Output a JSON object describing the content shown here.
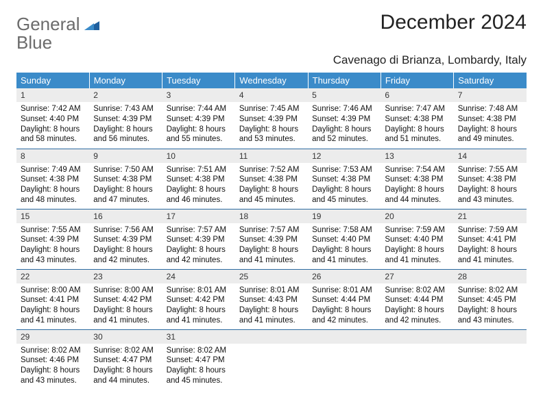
{
  "brand": {
    "word1": "General",
    "word2": "Blue",
    "mark_color": "#1f5f9e",
    "word1_color": "#6b6b6b",
    "word2_color": "#2a7fc4"
  },
  "title": "December 2024",
  "subtitle": "Cavenago di Brianza, Lombardy, Italy",
  "header_bg": "#3b8bc9",
  "row_divider_color": "#2b6aa0",
  "daynum_bg": "#ececec",
  "weekdays": [
    "Sunday",
    "Monday",
    "Tuesday",
    "Wednesday",
    "Thursday",
    "Friday",
    "Saturday"
  ],
  "weeks": [
    [
      {
        "num": "1",
        "sunrise": "Sunrise: 7:42 AM",
        "sunset": "Sunset: 4:40 PM",
        "daylight": "Daylight: 8 hours and 58 minutes."
      },
      {
        "num": "2",
        "sunrise": "Sunrise: 7:43 AM",
        "sunset": "Sunset: 4:39 PM",
        "daylight": "Daylight: 8 hours and 56 minutes."
      },
      {
        "num": "3",
        "sunrise": "Sunrise: 7:44 AM",
        "sunset": "Sunset: 4:39 PM",
        "daylight": "Daylight: 8 hours and 55 minutes."
      },
      {
        "num": "4",
        "sunrise": "Sunrise: 7:45 AM",
        "sunset": "Sunset: 4:39 PM",
        "daylight": "Daylight: 8 hours and 53 minutes."
      },
      {
        "num": "5",
        "sunrise": "Sunrise: 7:46 AM",
        "sunset": "Sunset: 4:39 PM",
        "daylight": "Daylight: 8 hours and 52 minutes."
      },
      {
        "num": "6",
        "sunrise": "Sunrise: 7:47 AM",
        "sunset": "Sunset: 4:38 PM",
        "daylight": "Daylight: 8 hours and 51 minutes."
      },
      {
        "num": "7",
        "sunrise": "Sunrise: 7:48 AM",
        "sunset": "Sunset: 4:38 PM",
        "daylight": "Daylight: 8 hours and 49 minutes."
      }
    ],
    [
      {
        "num": "8",
        "sunrise": "Sunrise: 7:49 AM",
        "sunset": "Sunset: 4:38 PM",
        "daylight": "Daylight: 8 hours and 48 minutes."
      },
      {
        "num": "9",
        "sunrise": "Sunrise: 7:50 AM",
        "sunset": "Sunset: 4:38 PM",
        "daylight": "Daylight: 8 hours and 47 minutes."
      },
      {
        "num": "10",
        "sunrise": "Sunrise: 7:51 AM",
        "sunset": "Sunset: 4:38 PM",
        "daylight": "Daylight: 8 hours and 46 minutes."
      },
      {
        "num": "11",
        "sunrise": "Sunrise: 7:52 AM",
        "sunset": "Sunset: 4:38 PM",
        "daylight": "Daylight: 8 hours and 45 minutes."
      },
      {
        "num": "12",
        "sunrise": "Sunrise: 7:53 AM",
        "sunset": "Sunset: 4:38 PM",
        "daylight": "Daylight: 8 hours and 45 minutes."
      },
      {
        "num": "13",
        "sunrise": "Sunrise: 7:54 AM",
        "sunset": "Sunset: 4:38 PM",
        "daylight": "Daylight: 8 hours and 44 minutes."
      },
      {
        "num": "14",
        "sunrise": "Sunrise: 7:55 AM",
        "sunset": "Sunset: 4:38 PM",
        "daylight": "Daylight: 8 hours and 43 minutes."
      }
    ],
    [
      {
        "num": "15",
        "sunrise": "Sunrise: 7:55 AM",
        "sunset": "Sunset: 4:39 PM",
        "daylight": "Daylight: 8 hours and 43 minutes."
      },
      {
        "num": "16",
        "sunrise": "Sunrise: 7:56 AM",
        "sunset": "Sunset: 4:39 PM",
        "daylight": "Daylight: 8 hours and 42 minutes."
      },
      {
        "num": "17",
        "sunrise": "Sunrise: 7:57 AM",
        "sunset": "Sunset: 4:39 PM",
        "daylight": "Daylight: 8 hours and 42 minutes."
      },
      {
        "num": "18",
        "sunrise": "Sunrise: 7:57 AM",
        "sunset": "Sunset: 4:39 PM",
        "daylight": "Daylight: 8 hours and 41 minutes."
      },
      {
        "num": "19",
        "sunrise": "Sunrise: 7:58 AM",
        "sunset": "Sunset: 4:40 PM",
        "daylight": "Daylight: 8 hours and 41 minutes."
      },
      {
        "num": "20",
        "sunrise": "Sunrise: 7:59 AM",
        "sunset": "Sunset: 4:40 PM",
        "daylight": "Daylight: 8 hours and 41 minutes."
      },
      {
        "num": "21",
        "sunrise": "Sunrise: 7:59 AM",
        "sunset": "Sunset: 4:41 PM",
        "daylight": "Daylight: 8 hours and 41 minutes."
      }
    ],
    [
      {
        "num": "22",
        "sunrise": "Sunrise: 8:00 AM",
        "sunset": "Sunset: 4:41 PM",
        "daylight": "Daylight: 8 hours and 41 minutes."
      },
      {
        "num": "23",
        "sunrise": "Sunrise: 8:00 AM",
        "sunset": "Sunset: 4:42 PM",
        "daylight": "Daylight: 8 hours and 41 minutes."
      },
      {
        "num": "24",
        "sunrise": "Sunrise: 8:01 AM",
        "sunset": "Sunset: 4:42 PM",
        "daylight": "Daylight: 8 hours and 41 minutes."
      },
      {
        "num": "25",
        "sunrise": "Sunrise: 8:01 AM",
        "sunset": "Sunset: 4:43 PM",
        "daylight": "Daylight: 8 hours and 41 minutes."
      },
      {
        "num": "26",
        "sunrise": "Sunrise: 8:01 AM",
        "sunset": "Sunset: 4:44 PM",
        "daylight": "Daylight: 8 hours and 42 minutes."
      },
      {
        "num": "27",
        "sunrise": "Sunrise: 8:02 AM",
        "sunset": "Sunset: 4:44 PM",
        "daylight": "Daylight: 8 hours and 42 minutes."
      },
      {
        "num": "28",
        "sunrise": "Sunrise: 8:02 AM",
        "sunset": "Sunset: 4:45 PM",
        "daylight": "Daylight: 8 hours and 43 minutes."
      }
    ],
    [
      {
        "num": "29",
        "sunrise": "Sunrise: 8:02 AM",
        "sunset": "Sunset: 4:46 PM",
        "daylight": "Daylight: 8 hours and 43 minutes."
      },
      {
        "num": "30",
        "sunrise": "Sunrise: 8:02 AM",
        "sunset": "Sunset: 4:47 PM",
        "daylight": "Daylight: 8 hours and 44 minutes."
      },
      {
        "num": "31",
        "sunrise": "Sunrise: 8:02 AM",
        "sunset": "Sunset: 4:47 PM",
        "daylight": "Daylight: 8 hours and 45 minutes."
      },
      {
        "empty": true
      },
      {
        "empty": true
      },
      {
        "empty": true
      },
      {
        "empty": true
      }
    ]
  ]
}
